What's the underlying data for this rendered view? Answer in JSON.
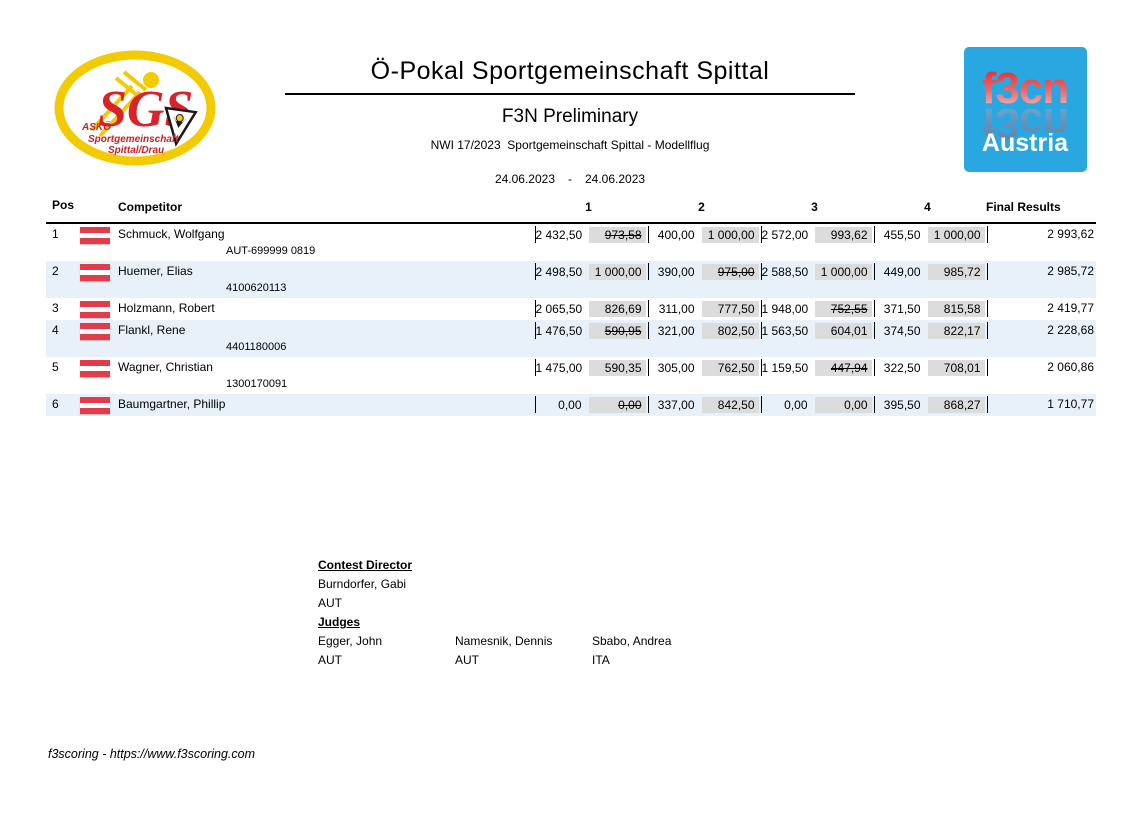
{
  "header": {
    "title": "Ö-Pokal Sportgemeinschaft Spittal",
    "subtitle": "F3N Preliminary",
    "contest_info": "NWI 17/2023  Sportgemeinschaft Spittal - Modellflug",
    "date_from": "24.06.2023",
    "date_separator": "-",
    "date_to": "24.06.2023"
  },
  "logos": {
    "sgs": {
      "monogram": "SGS",
      "org": "ASKÖ",
      "org_line2": "Sportgemeinschaft",
      "org_line3": "Spittal/Drau",
      "yellow": "#F2CB05",
      "red": "#D8232A"
    },
    "f3cn": {
      "brand": "f3cn",
      "country": "Austria",
      "background": "#29A7E1",
      "brand_red": "#E31E24"
    }
  },
  "table": {
    "headers": {
      "pos": "Pos",
      "competitor": "Competitor",
      "rounds": [
        "1",
        "2",
        "3",
        "4"
      ],
      "final": "Final Results"
    },
    "flag": "austria",
    "row_alt_color": "#E8F1FA",
    "score_box_color": "#DCDCDC",
    "rows": [
      {
        "pos": "1",
        "name": "Schmuck, Wolfgang",
        "license": "AUT-699999 0819",
        "final": "2 993,62",
        "rounds": [
          {
            "raw": "2 432,50",
            "norm": "973,58",
            "dropped": true
          },
          {
            "raw": "400,00",
            "norm": "1 000,00",
            "dropped": false
          },
          {
            "raw": "2 572,00",
            "norm": "993,62",
            "dropped": false
          },
          {
            "raw": "455,50",
            "norm": "1 000,00",
            "dropped": false
          }
        ]
      },
      {
        "pos": "2",
        "name": "Huemer, Elias",
        "license": "4100620113",
        "final": "2 985,72",
        "rounds": [
          {
            "raw": "2 498,50",
            "norm": "1 000,00",
            "dropped": false
          },
          {
            "raw": "390,00",
            "norm": "975,00",
            "dropped": true
          },
          {
            "raw": "2 588,50",
            "norm": "1 000,00",
            "dropped": false
          },
          {
            "raw": "449,00",
            "norm": "985,72",
            "dropped": false
          }
        ]
      },
      {
        "pos": "3",
        "name": "Holzmann, Robert",
        "license": "",
        "final": "2 419,77",
        "rounds": [
          {
            "raw": "2 065,50",
            "norm": "826,69",
            "dropped": false
          },
          {
            "raw": "311,00",
            "norm": "777,50",
            "dropped": false
          },
          {
            "raw": "1 948,00",
            "norm": "752,55",
            "dropped": true
          },
          {
            "raw": "371,50",
            "norm": "815,58",
            "dropped": false
          }
        ]
      },
      {
        "pos": "4",
        "name": "Flankl, Rene",
        "license": "4401180006",
        "final": "2 228,68",
        "rounds": [
          {
            "raw": "1 476,50",
            "norm": "590,95",
            "dropped": true
          },
          {
            "raw": "321,00",
            "norm": "802,50",
            "dropped": false
          },
          {
            "raw": "1 563,50",
            "norm": "604,01",
            "dropped": false
          },
          {
            "raw": "374,50",
            "norm": "822,17",
            "dropped": false
          }
        ]
      },
      {
        "pos": "5",
        "name": "Wagner, Christian",
        "license": "1300170091",
        "final": "2 060,86",
        "rounds": [
          {
            "raw": "1 475,00",
            "norm": "590,35",
            "dropped": false
          },
          {
            "raw": "305,00",
            "norm": "762,50",
            "dropped": false
          },
          {
            "raw": "1 159,50",
            "norm": "447,94",
            "dropped": true
          },
          {
            "raw": "322,50",
            "norm": "708,01",
            "dropped": false
          }
        ]
      },
      {
        "pos": "6",
        "name": "Baumgartner, Phillip",
        "license": "",
        "final": "1 710,77",
        "rounds": [
          {
            "raw": "0,00",
            "norm": "0,00",
            "dropped": true
          },
          {
            "raw": "337,00",
            "norm": "842,50",
            "dropped": false
          },
          {
            "raw": "0,00",
            "norm": "0,00",
            "dropped": false
          },
          {
            "raw": "395,50",
            "norm": "868,27",
            "dropped": false
          }
        ]
      }
    ]
  },
  "officials": {
    "director_label": "Contest Director",
    "director": {
      "name": "Burndorfer, Gabi",
      "country": "AUT"
    },
    "judges_label": "Judges",
    "judges": [
      {
        "name": "Egger, John",
        "country": "AUT"
      },
      {
        "name": "Namesnik, Dennis",
        "country": "AUT"
      },
      {
        "name": "Sbabo, Andrea",
        "country": "ITA"
      }
    ]
  },
  "footer": {
    "credit": "f3scoring - https://www.f3scoring.com"
  }
}
